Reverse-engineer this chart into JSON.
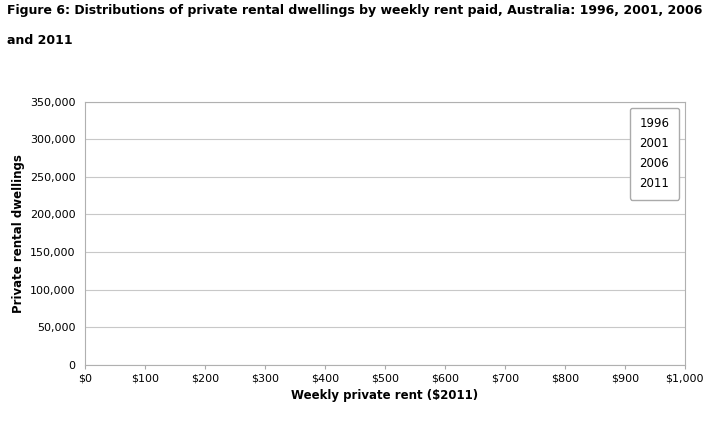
{
  "title_line1": "Figure 6: Distributions of private rental dwellings by weekly rent paid, Australia: 1996, 2001, 2006",
  "title_line2": "and 2011",
  "xlabel": "Weekly private rent ($2011)",
  "ylabel": "Private rental dwellings",
  "xlim": [
    0,
    1000
  ],
  "ylim": [
    0,
    350000
  ],
  "xtick_values": [
    0,
    100,
    200,
    300,
    400,
    500,
    600,
    700,
    800,
    900,
    1000
  ],
  "xtick_labels": [
    "$0",
    "$100",
    "$200",
    "$300",
    "$400",
    "$500",
    "$600",
    "$700",
    "$800",
    "$900",
    "$1,000"
  ],
  "ytick_values": [
    0,
    50000,
    100000,
    150000,
    200000,
    250000,
    300000,
    350000
  ],
  "ytick_labels": [
    "0",
    "50,000",
    "100,000",
    "150,000",
    "200,000",
    "250,000",
    "300,000",
    "350,000"
  ],
  "legend_labels": [
    "1996",
    "2001",
    "2006",
    "2011"
  ],
  "background_color": "#ffffff",
  "plot_bg_color": "#ffffff",
  "grid_color": "#c8c8c8",
  "title_fontsize": 9,
  "axis_label_fontsize": 8.5,
  "tick_fontsize": 8,
  "legend_fontsize": 8.5
}
